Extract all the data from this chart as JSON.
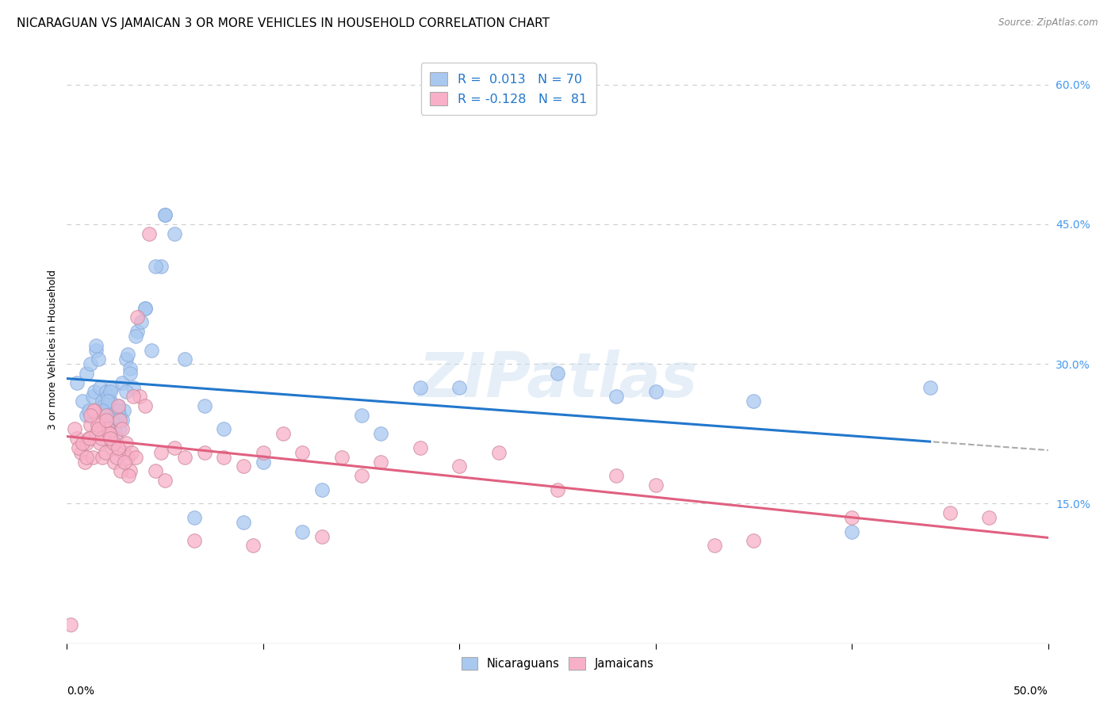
{
  "title": "NICARAGUAN VS JAMAICAN 3 OR MORE VEHICLES IN HOUSEHOLD CORRELATION CHART",
  "source": "Source: ZipAtlas.com",
  "ylabel": "3 or more Vehicles in Household",
  "watermark": "ZIPatlas",
  "legend_nic_R": "0.013",
  "legend_nic_N": "70",
  "legend_jam_R": "-0.128",
  "legend_jam_N": "81",
  "xlim": [
    0.0,
    50.0
  ],
  "ylim": [
    0.0,
    63.0
  ],
  "ytick_values": [
    15.0,
    30.0,
    45.0,
    60.0
  ],
  "nicaraguan_x": [
    0.5,
    0.8,
    1.0,
    1.0,
    1.2,
    1.3,
    1.4,
    1.5,
    1.6,
    1.7,
    1.8,
    1.9,
    2.0,
    2.0,
    2.1,
    2.1,
    2.2,
    2.3,
    2.4,
    2.5,
    2.6,
    2.7,
    2.8,
    2.9,
    3.0,
    3.1,
    3.2,
    3.4,
    3.6,
    3.8,
    4.0,
    4.3,
    4.8,
    5.0,
    5.5,
    6.0,
    7.0,
    8.0,
    10.0,
    13.0,
    15.0,
    18.0,
    25.0,
    30.0,
    44.0,
    1.1,
    1.5,
    2.0,
    2.2,
    2.4,
    2.6,
    2.8,
    3.0,
    3.2,
    3.5,
    4.0,
    4.5,
    5.0,
    6.5,
    9.0,
    12.0,
    16.0,
    20.0,
    28.0,
    35.0,
    40.0,
    2.1,
    2.3,
    1.8,
    2.7
  ],
  "nicaraguan_y": [
    28.0,
    26.0,
    29.0,
    24.5,
    30.0,
    26.5,
    27.0,
    31.5,
    30.5,
    27.5,
    26.0,
    25.5,
    25.0,
    27.0,
    25.5,
    26.5,
    26.0,
    27.5,
    23.5,
    22.5,
    25.5,
    24.5,
    28.0,
    25.0,
    30.5,
    31.0,
    29.5,
    27.5,
    33.5,
    34.5,
    36.0,
    31.5,
    40.5,
    46.0,
    44.0,
    30.5,
    25.5,
    23.0,
    19.5,
    16.5,
    24.5,
    27.5,
    29.0,
    27.0,
    27.5,
    25.0,
    32.0,
    24.0,
    27.0,
    24.0,
    25.0,
    24.0,
    27.0,
    29.0,
    33.0,
    36.0,
    40.5,
    46.0,
    13.5,
    13.0,
    12.0,
    22.5,
    27.5,
    26.5,
    26.0,
    12.0,
    26.0,
    24.0,
    25.0,
    23.0
  ],
  "jamaican_x": [
    0.2,
    0.5,
    0.7,
    0.9,
    1.0,
    1.1,
    1.2,
    1.3,
    1.4,
    1.5,
    1.6,
    1.7,
    1.8,
    1.9,
    2.0,
    2.1,
    2.2,
    2.3,
    2.4,
    2.5,
    2.6,
    2.7,
    2.8,
    2.9,
    3.0,
    3.1,
    3.2,
    3.3,
    3.5,
    3.7,
    4.0,
    4.5,
    5.0,
    5.5,
    6.0,
    7.0,
    8.0,
    9.0,
    10.0,
    11.0,
    12.0,
    13.0,
    14.0,
    15.0,
    16.0,
    18.0,
    20.0,
    22.0,
    25.0,
    28.0,
    30.0,
    33.0,
    35.0,
    40.0,
    45.0,
    47.0,
    0.4,
    0.6,
    0.8,
    1.15,
    1.35,
    1.55,
    1.75,
    1.95,
    2.15,
    2.35,
    2.55,
    2.75,
    2.95,
    3.15,
    3.4,
    3.6,
    4.2,
    4.8,
    6.5,
    9.5,
    1.0,
    1.2,
    1.6,
    2.0,
    2.2,
    2.6
  ],
  "jamaican_y": [
    2.0,
    22.0,
    20.5,
    19.5,
    21.5,
    22.0,
    23.5,
    20.0,
    25.0,
    22.5,
    24.0,
    21.5,
    20.0,
    23.0,
    24.5,
    23.0,
    22.5,
    21.0,
    19.5,
    22.0,
    25.5,
    24.0,
    23.0,
    20.5,
    21.5,
    20.0,
    18.5,
    20.5,
    20.0,
    26.5,
    25.5,
    18.5,
    17.5,
    21.0,
    20.0,
    20.5,
    20.0,
    19.0,
    20.5,
    22.5,
    20.5,
    11.5,
    20.0,
    18.0,
    19.5,
    21.0,
    19.0,
    20.5,
    16.5,
    18.0,
    17.0,
    10.5,
    11.0,
    13.5,
    14.0,
    13.5,
    23.0,
    21.0,
    21.5,
    22.0,
    25.0,
    23.5,
    22.0,
    20.5,
    22.5,
    21.5,
    20.0,
    18.5,
    19.5,
    18.0,
    26.5,
    35.0,
    44.0,
    20.5,
    11.0,
    10.5,
    20.0,
    24.5,
    23.0,
    24.0,
    22.0,
    21.0
  ],
  "nic_line_color": "#2277cc",
  "jam_line_color": "#e06080",
  "nic_dot_color": "#a8c8f0",
  "jam_dot_color": "#f8b0c8",
  "grid_color": "#cccccc",
  "background_color": "#ffffff",
  "title_fontsize": 11,
  "axis_label_fontsize": 9,
  "tick_fontsize": 10,
  "right_ytick_color": "#4499ee",
  "legend_text_color": "#2277cc"
}
